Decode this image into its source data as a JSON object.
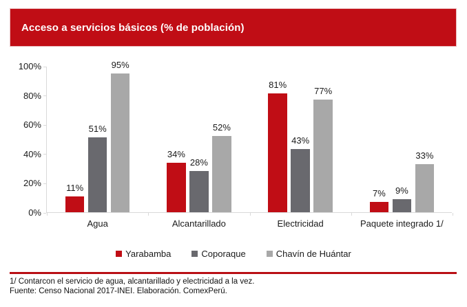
{
  "title": "Acceso a servicios básicos (% de población)",
  "colors": {
    "banner_red": "#c00d15",
    "footer_line_red": "#b90e14",
    "axis_gray": "#d9d9d9",
    "text_black": "#1a1a1a"
  },
  "chart_data": {
    "type": "bar",
    "title": "Acceso a servicios básicos (% de población)",
    "categories": [
      "Agua",
      "Alcantarillado",
      "Electricidad",
      "Paquete integrado 1/"
    ],
    "series": [
      {
        "name": "Yarabamba",
        "color": "#c00d15",
        "values": [
          11,
          34,
          81,
          7
        ]
      },
      {
        "name": "Coporaque",
        "color": "#69696e",
        "values": [
          51,
          28,
          43,
          9
        ]
      },
      {
        "name": "Chavín de Huántar",
        "color": "#a8a8a8",
        "values": [
          95,
          52,
          77,
          33
        ]
      }
    ],
    "data_labels": [
      [
        "11%",
        "34%",
        "81%",
        "7%"
      ],
      [
        "51%",
        "28%",
        "43%",
        "9%"
      ],
      [
        "95%",
        "52%",
        "77%",
        "33%"
      ]
    ],
    "xlabel": "",
    "ylabel": "",
    "ylim": [
      0,
      100
    ],
    "yticks": [
      "0%",
      "20%",
      "40%",
      "60%",
      "80%",
      "100%"
    ],
    "grid": false,
    "legend_position": "bottom"
  },
  "footer": {
    "note": "1/ Contarcon el servicio de agua, alcantarillado y electricidad a la vez.",
    "source": "Fuente: Censo Nacional 2017-INEI. Elaboración. ComexPerú."
  }
}
